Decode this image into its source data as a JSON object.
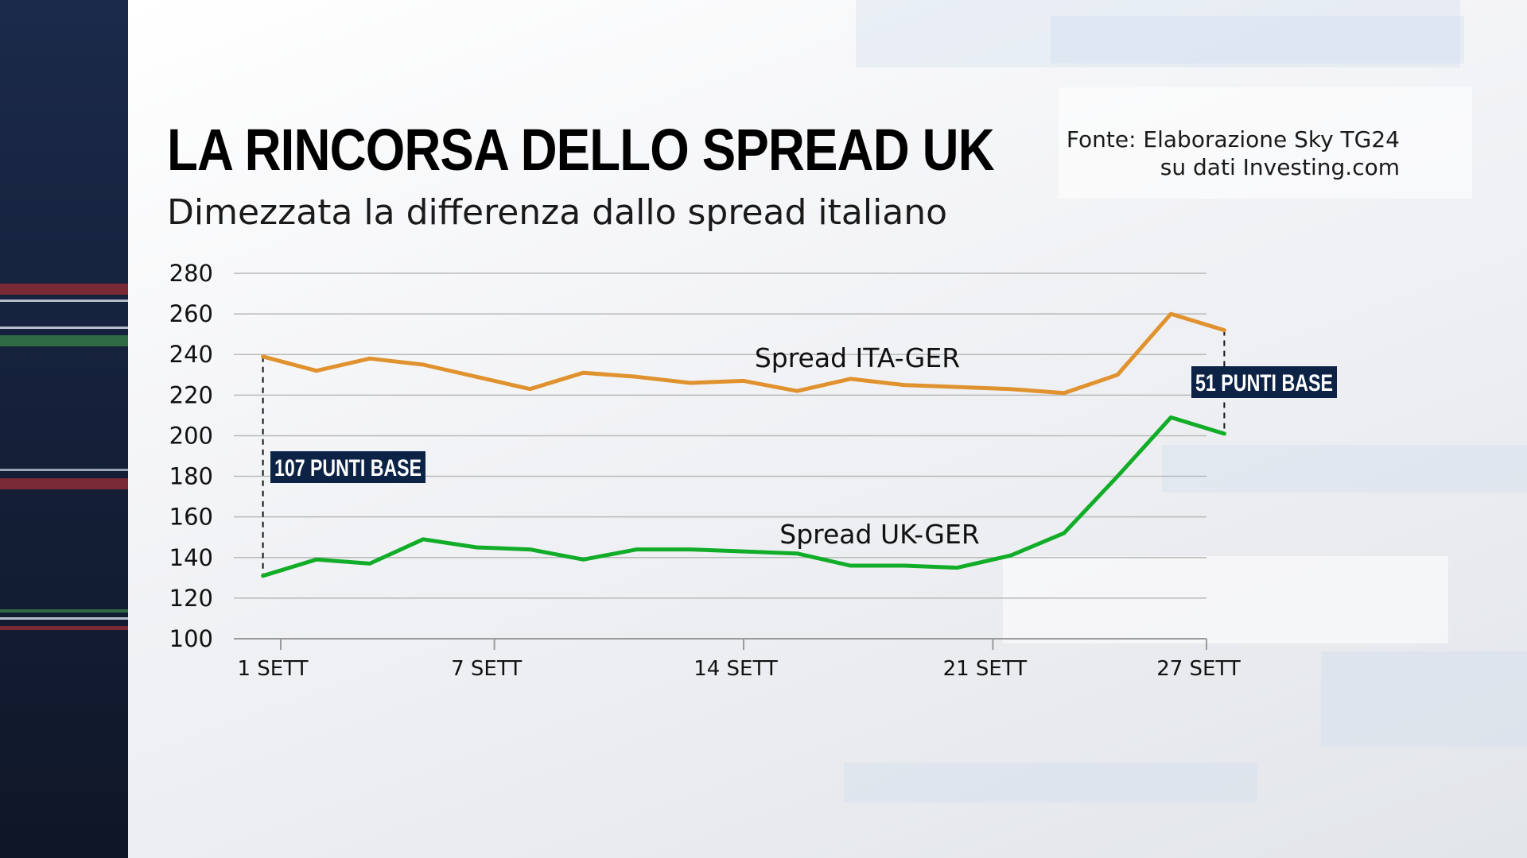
{
  "title": "LA RINCORSA DELLO SPREAD UK",
  "subtitle": "Dimezzata la differenza dallo spread italiano",
  "source": {
    "line1": "Fonte: Elaborazione Sky TG24",
    "line2": "su dati Investing.com"
  },
  "colors": {
    "ita_ger": "#e0922e",
    "uk_ger": "#12ad28",
    "callout_bg": "#0c2345",
    "sidebar": "#15213b"
  },
  "chart_data": {
    "type": "line",
    "title": "LA RINCORSA DELLO SPREAD UK",
    "subtitle": "Dimezzata la differenza dallo spread italiano",
    "xlabel": "",
    "ylabel": "",
    "ylim": [
      100,
      280
    ],
    "yticks": [
      280,
      260,
      240,
      220,
      200,
      180,
      160,
      140,
      120,
      100
    ],
    "x_range": [
      1,
      27
    ],
    "xticks": [
      {
        "value": 1,
        "label": "1 SETT"
      },
      {
        "value": 7,
        "label": "7 SETT"
      },
      {
        "value": 14,
        "label": "14 SETT"
      },
      {
        "value": 21,
        "label": "21 SETT"
      },
      {
        "value": 27,
        "label": "27 SETT"
      }
    ],
    "grid": true,
    "x": [
      0.5,
      2,
      3.5,
      5,
      6.5,
      8,
      9.5,
      11,
      12.5,
      14,
      15.5,
      17,
      18.5,
      20,
      21.5,
      23,
      24.5,
      26,
      27.5
    ],
    "series": [
      {
        "name": "Spread ITA-GER",
        "color": "#e0922e",
        "values": [
          239,
          232,
          238,
          235,
          229,
          223,
          231,
          229,
          226,
          227,
          222,
          228,
          225,
          224,
          223,
          221,
          230,
          260,
          252
        ]
      },
      {
        "name": "Spread UK-GER",
        "color": "#12ad28",
        "values": [
          131,
          139,
          137,
          149,
          145,
          144,
          139,
          144,
          144,
          143,
          142,
          136,
          136,
          135,
          141,
          152,
          180,
          209,
          201
        ]
      }
    ],
    "annotations": [
      {
        "text": "107 PUNTI BASE",
        "x": 0.5,
        "y_from": 131,
        "y_to": 239,
        "label_y": 181
      },
      {
        "text": "51 PUNTI BASE",
        "x": 27.5,
        "y_from": 201,
        "y_to": 252,
        "label_y": 221
      }
    ]
  }
}
